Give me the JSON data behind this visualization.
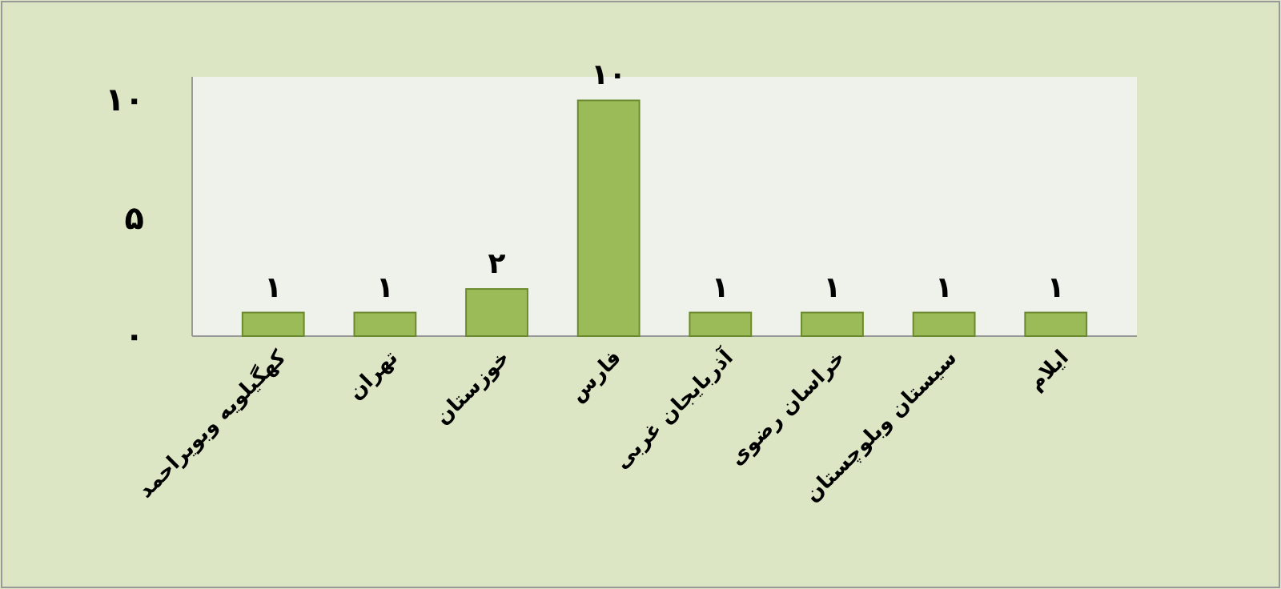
{
  "chart_data": {
    "type": "bar",
    "categories": [
      "کهگیلویه وبویراحمد",
      "تهران",
      "خوزستان",
      "فارس",
      "آذربایجان غربی",
      "خراسان رضوی",
      "سیستان وبلوچستان",
      "ایلام"
    ],
    "values": [
      1,
      1,
      2,
      10,
      1,
      1,
      1,
      1
    ],
    "value_labels": [
      "۱",
      "۱",
      "۲",
      "۱۰",
      "۱",
      "۱",
      "۱",
      "۱"
    ],
    "color": "#9bbb59",
    "ylim": [
      0,
      11
    ],
    "yticks": [
      {
        "value": 0,
        "label": "۰"
      },
      {
        "value": 5,
        "label": "۵"
      },
      {
        "value": 10,
        "label": "۱۰"
      }
    ],
    "grid": false
  }
}
